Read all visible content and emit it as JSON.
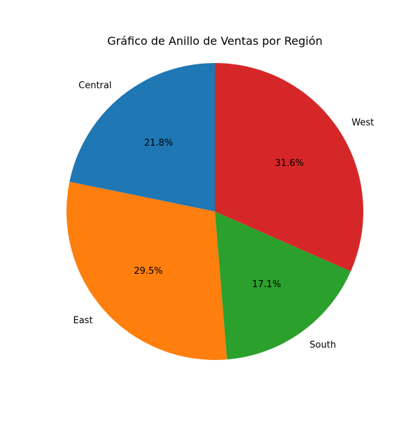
{
  "chart_data": {
    "type": "pie",
    "title": "Gráfico de Anillo de Ventas por Región",
    "categories": [
      "Central",
      "East",
      "South",
      "West"
    ],
    "values": [
      21.8,
      29.5,
      17.1,
      31.6
    ],
    "value_labels": [
      "21.8%",
      "29.5%",
      "17.1%",
      "31.6%"
    ],
    "colors": [
      "#1f77b4",
      "#ff7f0e",
      "#2ca02c",
      "#d62728"
    ],
    "start_angle_deg": 90,
    "direction": "counterclockwise",
    "legend": "none"
  }
}
